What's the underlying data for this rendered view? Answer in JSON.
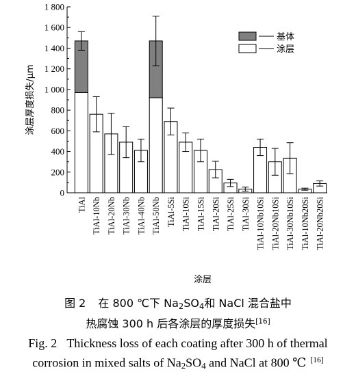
{
  "chart_data": {
    "type": "bar",
    "stacked": true,
    "xlabel": "涂层",
    "ylabel": "涂层厚度损失/μm",
    "ylim": [
      0,
      1800
    ],
    "yticks": [
      0,
      200,
      400,
      600,
      800,
      1000,
      1200,
      1400,
      1600,
      1800
    ],
    "ytick_labels": [
      "0",
      "200",
      "400",
      "600",
      "800",
      "1 000",
      "1 200",
      "1 400",
      "1 600",
      "1 800"
    ],
    "grid": false,
    "legend_position": "top-right",
    "categories": [
      "TiAl",
      "TiAl-10Nb",
      "TiAl-20Nb",
      "TiAl-30Nb",
      "TiAl-40Nb",
      "TiAl-50Nb",
      "TiAl-5Si",
      "TiAl-10Si",
      "TiAl-15Si",
      "TiAl-20Si",
      "TiAl-25Si",
      "TiAl-30Si",
      "TiAl-10Nb10Si",
      "TiAl-20Nb10Si",
      "TiAl-30Nb10Si",
      "TiAl-10Nb20Si",
      "TiAl-20Nb20Si"
    ],
    "series": [
      {
        "name": "涂层",
        "color": "#ffffff",
        "values": [
          970,
          760,
          570,
          490,
          410,
          920,
          690,
          490,
          410,
          225,
          95,
          35,
          440,
          300,
          335,
          35,
          90
        ]
      },
      {
        "name": "基体",
        "color": "#808080",
        "values": [
          500,
          0,
          0,
          0,
          0,
          550,
          0,
          0,
          0,
          0,
          0,
          0,
          0,
          0,
          0,
          0,
          0
        ]
      }
    ],
    "error_bars": [
      90,
      170,
      200,
      150,
      110,
      240,
      130,
      90,
      110,
      80,
      35,
      20,
      80,
      130,
      150,
      10,
      25
    ]
  },
  "caption": {
    "cn_line1": {
      "label": "图 2",
      "text1": "在 800 ℃下 Na",
      "sub1": "2",
      "text2": "SO",
      "sub2": "4",
      "text3": "和 NaCl 混合盐中"
    },
    "cn_line2": {
      "text": "热腐蚀 300 h 后各涂层的厚度损失",
      "ref": "[16]"
    },
    "en_line1": {
      "label": "Fig. 2",
      "text": "Thickness loss of each coating after 300 h of thermal"
    },
    "en_line2": {
      "text1": "corrosion in mixed salts of Na",
      "sub1": "2",
      "text2": "SO",
      "sub2": "4",
      "text3": " and NaCl at 800 ℃",
      "ref": "[16]"
    }
  }
}
